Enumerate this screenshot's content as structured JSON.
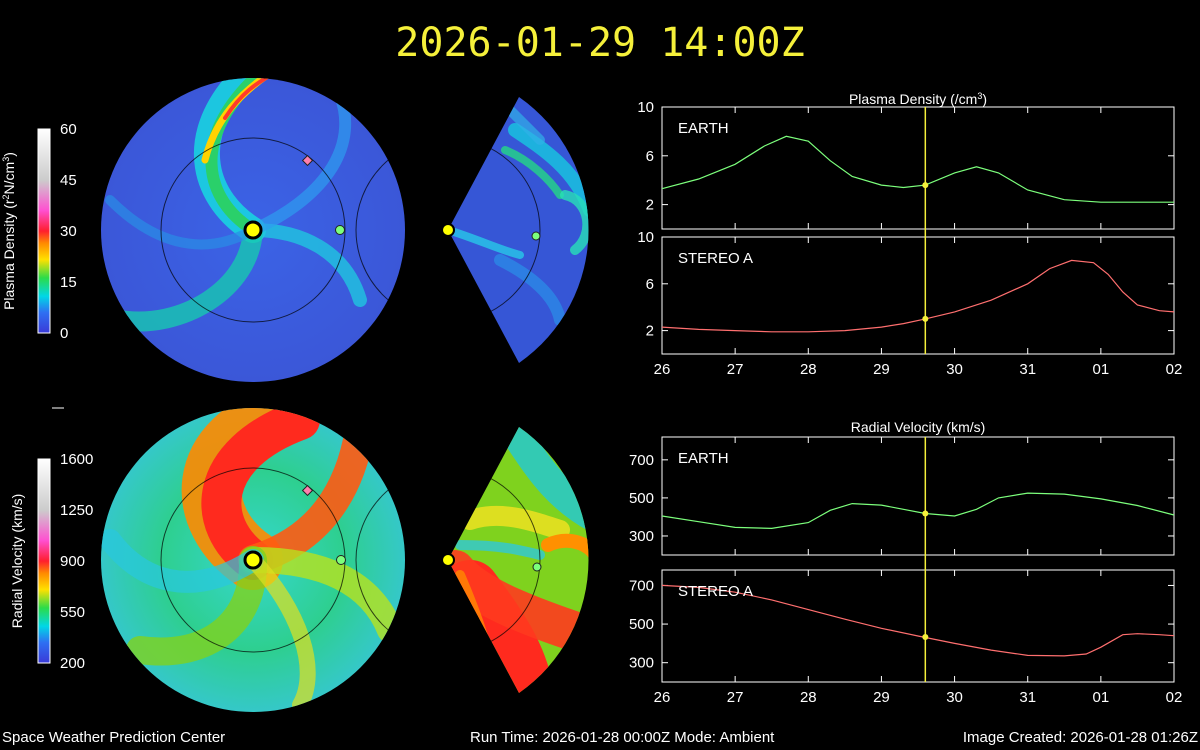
{
  "title": "2026-01-29 14:00Z",
  "footer": {
    "left": "Space Weather Prediction Center",
    "center": "Run Time: 2026-01-28 00:00Z  Mode: Ambient",
    "right": "Image Created: 2026-01-28 01:26Z"
  },
  "colors": {
    "earth": "#7cff7c",
    "stereo_a": "#ff6f6f",
    "marker": "#f5f03a",
    "sun": "#ffff00",
    "stereo_marker": "#ff7fae"
  },
  "colorbars": {
    "density": {
      "label_main": "Plasma Density (r",
      "label_sup1": "2",
      "label_mid": "N/cm",
      "label_sup2": "3",
      "label_end": ")",
      "ticks": [
        "60",
        "45",
        "30",
        "15",
        "0"
      ]
    },
    "velocity": {
      "label": "Radial Velocity (km/s)",
      "ticks": [
        "1600",
        "1250",
        "900",
        "550",
        "200"
      ]
    }
  },
  "chart_data": [
    {
      "type": "line",
      "title": "Plasma Density (/cm",
      "title_sup": "3",
      "title_end": ")",
      "ylim": [
        0,
        10
      ],
      "yticks": [
        2,
        6,
        10
      ],
      "series": [
        {
          "name": "EARTH",
          "x": [
            26.0,
            26.5,
            27.0,
            27.4,
            27.7,
            28.0,
            28.3,
            28.6,
            29.0,
            29.3,
            29.6,
            30.0,
            30.3,
            30.6,
            31.0,
            31.5,
            32.0,
            32.5,
            33.0
          ],
          "values": [
            3.3,
            4.1,
            5.3,
            6.8,
            7.6,
            7.2,
            5.6,
            4.3,
            3.6,
            3.4,
            3.6,
            4.6,
            5.1,
            4.6,
            3.2,
            2.4,
            2.2,
            2.2,
            2.2
          ]
        }
      ],
      "current_x": 29.6,
      "current_value": 3.6
    },
    {
      "type": "line",
      "title": "",
      "ylim": [
        0,
        10
      ],
      "yticks": [
        2,
        6,
        10
      ],
      "series": [
        {
          "name": "STEREO A",
          "x": [
            26.0,
            26.5,
            27.0,
            27.5,
            28.0,
            28.5,
            29.0,
            29.3,
            29.6,
            30.0,
            30.5,
            31.0,
            31.3,
            31.6,
            31.9,
            32.1,
            32.3,
            32.5,
            32.8,
            33.0
          ],
          "values": [
            2.3,
            2.1,
            2.0,
            1.9,
            1.9,
            2.0,
            2.3,
            2.6,
            3.0,
            3.6,
            4.6,
            6.0,
            7.3,
            8.0,
            7.8,
            6.8,
            5.3,
            4.2,
            3.7,
            3.6
          ]
        }
      ],
      "current_x": 29.6,
      "current_value": 3.0,
      "xticks": [
        "26",
        "27",
        "28",
        "29",
        "30",
        "31",
        "01",
        "02"
      ]
    },
    {
      "type": "line",
      "title": "Radial Velocity (km/s)",
      "ylim": [
        200,
        820
      ],
      "yticks": [
        300,
        500,
        700
      ],
      "series": [
        {
          "name": "EARTH",
          "x": [
            26.0,
            26.5,
            27.0,
            27.5,
            28.0,
            28.3,
            28.6,
            29.0,
            29.3,
            29.6,
            30.0,
            30.3,
            30.6,
            31.0,
            31.5,
            32.0,
            32.5,
            33.0
          ],
          "values": [
            405,
            375,
            345,
            340,
            370,
            435,
            470,
            462,
            440,
            418,
            405,
            440,
            500,
            525,
            520,
            495,
            460,
            410
          ]
        }
      ],
      "current_x": 29.6,
      "current_value": 418
    },
    {
      "type": "line",
      "title": "",
      "ylim": [
        200,
        780
      ],
      "yticks": [
        300,
        500,
        700
      ],
      "series": [
        {
          "name": "STEREO A",
          "x": [
            26.0,
            26.5,
            27.0,
            27.5,
            28.0,
            28.5,
            29.0,
            29.5,
            30.0,
            30.5,
            31.0,
            31.5,
            31.8,
            32.0,
            32.3,
            32.5,
            32.8,
            33.0
          ],
          "values": [
            700,
            690,
            665,
            625,
            575,
            525,
            478,
            438,
            400,
            365,
            338,
            335,
            345,
            380,
            445,
            450,
            445,
            440
          ]
        }
      ],
      "current_x": 29.6,
      "current_value": 433,
      "xticks": [
        "26",
        "27",
        "28",
        "29",
        "30",
        "31",
        "01",
        "02"
      ]
    }
  ]
}
